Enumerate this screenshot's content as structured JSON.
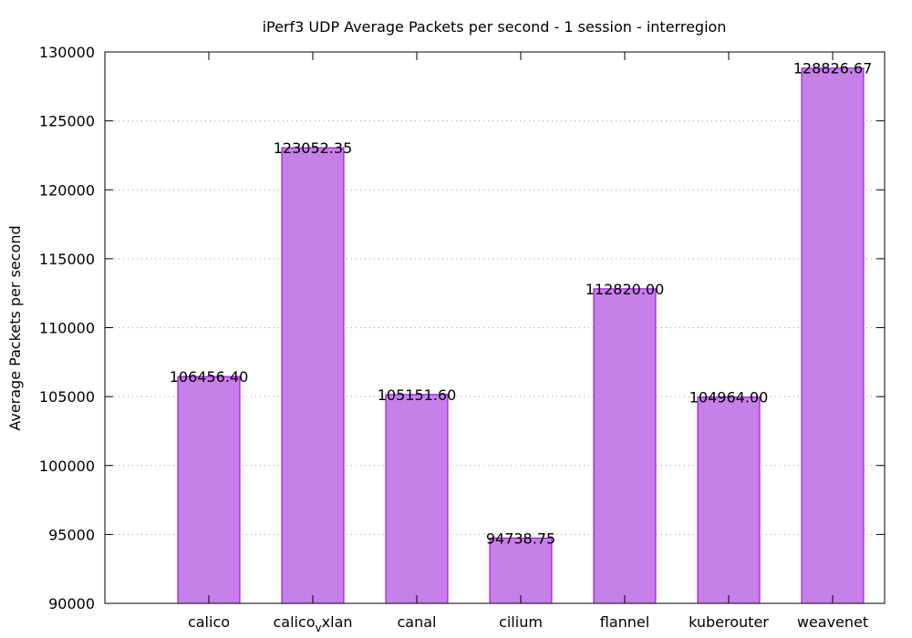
{
  "chart_data": {
    "type": "bar",
    "title": "iPerf3 UDP Average Packets per second - 1 session - interregion",
    "xlabel": "",
    "ylabel": "Average Packets per second",
    "categories": [
      "calico",
      "calico_vxlan",
      "canal",
      "cilium",
      "flannel",
      "kuberouter",
      "weavenet"
    ],
    "category_display": [
      {
        "base": "calico",
        "sub": ""
      },
      {
        "base": "calico",
        "sub": "v",
        "tail": "xlan"
      },
      {
        "base": "canal",
        "sub": ""
      },
      {
        "base": "cilium",
        "sub": ""
      },
      {
        "base": "flannel",
        "sub": ""
      },
      {
        "base": "kuberouter",
        "sub": ""
      },
      {
        "base": "weavenet",
        "sub": ""
      }
    ],
    "values": [
      106456.4,
      123052.35,
      105151.6,
      94738.75,
      112820.0,
      104964.0,
      128826.67
    ],
    "value_labels": [
      "106456.40",
      "123052.35",
      "105151.60",
      "94738.75",
      "112820.00",
      "104964.00",
      "128826.67"
    ],
    "ylim": [
      90000,
      130000
    ],
    "yticks": [
      90000,
      95000,
      100000,
      105000,
      110000,
      115000,
      120000,
      125000,
      130000
    ],
    "grid": "horizontal dotted",
    "legend": "none",
    "bar_color": "#c77fe9",
    "bar_edge_color": "#9400d3"
  }
}
